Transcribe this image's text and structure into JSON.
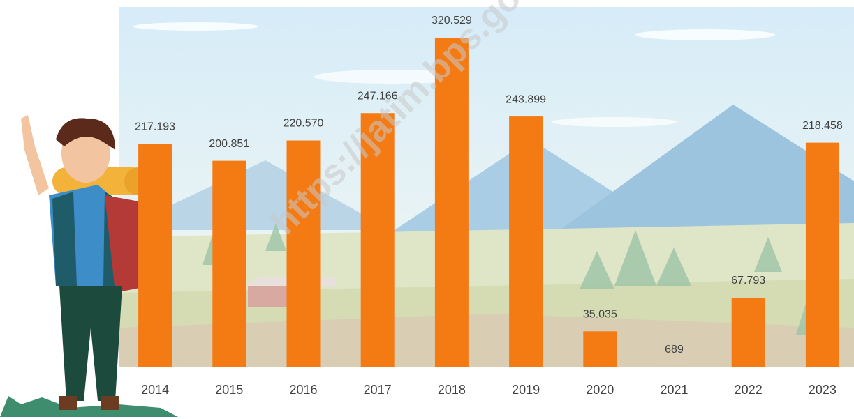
{
  "chart_data": {
    "type": "bar",
    "categories": [
      "2014",
      "2015",
      "2016",
      "2017",
      "2018",
      "2019",
      "2020",
      "2021",
      "2022",
      "2023"
    ],
    "values": [
      217193,
      200851,
      220570,
      247166,
      320529,
      243899,
      35035,
      689,
      67793,
      218458
    ],
    "value_labels": [
      "217.193",
      "200.851",
      "220.570",
      "247.166",
      "320.529",
      "243.899",
      "35.035",
      "689",
      "67.793",
      "218.458"
    ],
    "color": "#f47a14",
    "watermark": "https://jatim.bps.go.id"
  }
}
